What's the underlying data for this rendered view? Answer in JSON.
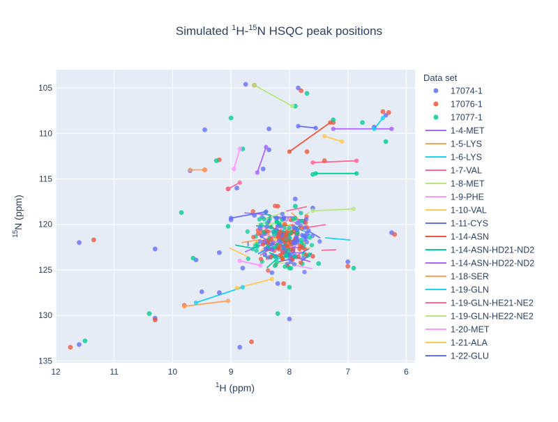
{
  "chart_data": {
    "type": "scatter",
    "title": {
      "prefix": "Simulated ",
      "sup1": "1",
      "mid": "H-",
      "sup2": "15",
      "suffix": "N HSQC peak positions"
    },
    "xlabel": {
      "sup": "1",
      "text": "H (ppm)"
    },
    "ylabel": {
      "sup": "15",
      "text": "N (ppm)"
    },
    "x_reversed": true,
    "y_reversed": true,
    "xlim": [
      12.0,
      5.85
    ],
    "ylim": [
      103.0,
      135.2
    ],
    "x_ticks": [
      12,
      11,
      10,
      9,
      8,
      7,
      6
    ],
    "y_ticks": [
      105,
      110,
      115,
      120,
      125,
      130,
      135
    ],
    "grid": true,
    "legend": {
      "title": "Data set",
      "placement": "right"
    },
    "series": [
      {
        "name": "17074-1",
        "kind": "points",
        "color": "#636efa",
        "x": [
          8.75,
          7.85,
          8.35,
          8.35,
          8.45,
          6.55,
          9.45,
          9.7,
          8.9,
          9.2,
          8.4,
          7.7,
          8.3,
          9.2,
          11.6,
          10.3,
          9.6,
          8.8,
          9.0,
          9.5,
          10.3,
          11.6,
          8.85,
          8.0,
          7.6,
          6.25,
          6.35,
          7.0,
          8.2,
          7.9,
          8.6,
          8.5
        ],
        "y": [
          104.6,
          105.0,
          109.5,
          111.8,
          113.9,
          109.3,
          109.6,
          114.1,
          116.0,
          123.1,
          122.7,
          121.0,
          125.3,
          127.5,
          122.0,
          122.7,
          123.9,
          124.8,
          119.5,
          127.4,
          130.3,
          133.2,
          133.5,
          130.4,
          118.2,
          120.9,
          108.0,
          124.1,
          126.5,
          117.2,
          119.0,
          120.4
        ]
      },
      {
        "name": "17076-1",
        "kind": "points",
        "color": "#ef553b",
        "x": [
          8.6,
          7.8,
          9.45,
          9.05,
          9.2,
          9.8,
          10.3,
          11.75,
          11.35,
          8.65,
          7.25,
          6.4,
          6.3,
          7.7,
          8.2,
          7.4,
          6.2,
          7.0,
          8.1,
          7.6
        ],
        "y": [
          104.7,
          105.3,
          114.0,
          116.1,
          112.9,
          128.9,
          130.5,
          133.5,
          121.7,
          132.9,
          108.8,
          107.6,
          107.7,
          112.0,
          118.0,
          113.0,
          121.1,
          124.6,
          126.5,
          123.5
        ]
      },
      {
        "name": "17077-1",
        "kind": "points",
        "color": "#00cc96",
        "x": [
          7.9,
          7.7,
          9.0,
          8.8,
          9.25,
          9.85,
          10.4,
          11.5,
          9.65,
          9.05,
          8.2,
          7.25,
          6.75,
          6.9,
          7.5,
          8.0,
          7.9,
          7.6,
          8.0,
          6.35
        ],
        "y": [
          107.0,
          105.6,
          108.3,
          111.7,
          113.0,
          118.7,
          129.8,
          132.8,
          123.7,
          120.2,
          129.8,
          108.5,
          108.8,
          124.8,
          124.3,
          124.8,
          118.0,
          114.5,
          126.9,
          110.9
        ]
      },
      {
        "name": "1-4-MET",
        "kind": "line",
        "color": "#ab63fa",
        "x": [
          8.55,
          8.4
        ],
        "y": [
          114.3,
          111.5
        ]
      },
      {
        "name": "1-5-LYS",
        "kind": "line",
        "color": "#ffa15a",
        "x": [
          9.7,
          9.45
        ],
        "y": [
          114.0,
          114.0
        ]
      },
      {
        "name": "1-6-LYS",
        "kind": "line",
        "color": "#19d3f3",
        "x": [
          6.55,
          6.4
        ],
        "y": [
          109.5,
          108.3
        ]
      },
      {
        "name": "1-7-VAL",
        "kind": "line",
        "color": "#ff6692",
        "x": [
          9.05,
          8.85
        ],
        "y": [
          116.1,
          115.4
        ]
      },
      {
        "name": "1-8-MET",
        "kind": "line",
        "color": "#b6e880",
        "x": [
          8.6,
          7.95
        ],
        "y": [
          104.7,
          107.0
        ]
      },
      {
        "name": "1-9-PHE",
        "kind": "line",
        "color": "#ff97ff",
        "x": [
          8.85,
          8.95
        ],
        "y": [
          111.7,
          113.9
        ]
      },
      {
        "name": "1-10-VAL",
        "kind": "line",
        "color": "#fecb52",
        "x": [
          7.4,
          7.1
        ],
        "y": [
          110.3,
          110.9
        ]
      },
      {
        "name": "1-11-CYS",
        "kind": "line",
        "color": "#636efa",
        "x": [
          7.85,
          7.55
        ],
        "y": [
          109.2,
          109.4
        ]
      },
      {
        "name": "1-14-ASN",
        "kind": "line",
        "color": "#ef553b",
        "x": [
          8.0,
          7.3
        ],
        "y": [
          112.0,
          108.8
        ]
      },
      {
        "name": "1-14-ASN-HD21-ND2",
        "kind": "line",
        "color": "#00cc96",
        "x": [
          7.55,
          6.85
        ],
        "y": [
          114.4,
          114.4
        ]
      },
      {
        "name": "1-14-ASN-HD22-ND2",
        "kind": "line",
        "color": "#ab63fa",
        "x": [
          7.25,
          6.25
        ],
        "y": [
          109.5,
          109.5
        ]
      },
      {
        "name": "1-18-SER",
        "kind": "line",
        "color": "#ffa15a",
        "x": [
          9.8,
          9.05
        ],
        "y": [
          129.0,
          128.4
        ]
      },
      {
        "name": "1-19-GLN",
        "kind": "line",
        "color": "#19d3f3",
        "x": [
          9.6,
          8.8
        ],
        "y": [
          128.6,
          126.9
        ]
      },
      {
        "name": "1-19-GLN-HE21-NE2",
        "kind": "line",
        "color": "#ff6692",
        "x": [
          7.6,
          6.85
        ],
        "y": [
          113.2,
          113.0
        ]
      },
      {
        "name": "1-19-GLN-HE22-NE2",
        "kind": "line",
        "color": "#b6e880",
        "x": [
          7.6,
          6.9
        ],
        "y": [
          118.5,
          118.3
        ]
      },
      {
        "name": "1-20-MET",
        "kind": "line",
        "color": "#ff97ff",
        "x": [
          8.85,
          8.5
        ],
        "y": [
          124.0,
          124.5
        ]
      },
      {
        "name": "1-21-ALA",
        "kind": "line",
        "color": "#fecb52",
        "x": [
          8.9,
          8.3
        ],
        "y": [
          127.0,
          126.0
        ]
      },
      {
        "name": "1-22-GLU",
        "kind": "line",
        "color": "#636efa",
        "x": [
          9.0,
          8.4
        ],
        "y": [
          119.3,
          118.6
        ]
      }
    ]
  },
  "decor": {
    "noise_colors": [
      "#636efa",
      "#ef553b",
      "#00cc96",
      "#ab63fa",
      "#ffa15a",
      "#19d3f3",
      "#ff6692",
      "#b6e880",
      "#ff97ff",
      "#fecb52"
    ]
  }
}
